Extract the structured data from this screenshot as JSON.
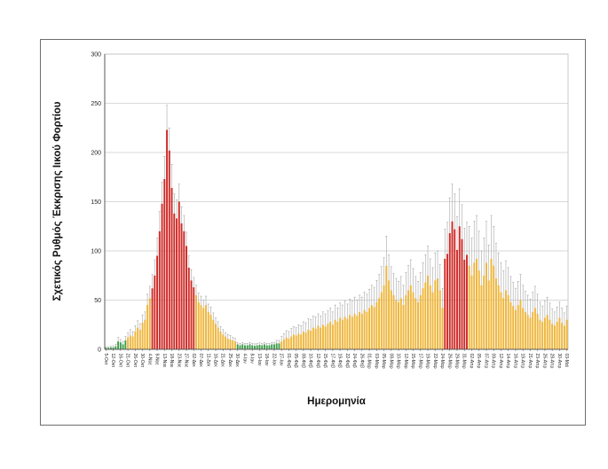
{
  "chart_data": {
    "type": "bar",
    "title": "",
    "xlabel": "Ημερομηνία",
    "ylabel": "Σχετικός Ρυθμός Έκκρισης Ιικού Φορτίου",
    "ylim": [
      0,
      300
    ],
    "yticks": [
      0,
      50,
      100,
      150,
      200,
      250,
      300
    ],
    "grid": true,
    "legend": false,
    "label_every_n_bars": 3,
    "x_tick_labels": [
      "5-Οκτ",
      "12-Οκτ",
      "16-Οκτ",
      "21-Οκτ",
      "26-Οκτ",
      "30-Οκτ",
      "4-Νοε",
      "9-Νοε",
      "13-Νοε",
      "18-Νοε",
      "23-Νοε",
      "27-Νοε",
      "02-Δεκ",
      "07-Δεκ",
      "11-Δεκ",
      "16-Δεκ",
      "21-Δεκ",
      "25-Δεκ",
      "30-Δεκ",
      "4-Ιαν",
      "8-Ιαν",
      "13-Ιαν",
      "18-Ιαν",
      "22-Ιαν",
      "27-Ιαν",
      "01-Φεβ",
      "05-Φεβ",
      "08-Φεβ",
      "10-Φεβ",
      "12-Φεβ",
      "15-Φεβ",
      "17-Φεβ",
      "19-Φεβ",
      "22-Φεβ",
      "24-Φεβ",
      "26-Φεβ",
      "01-Μαρ",
      "03-Μαρ",
      "05-Μαρ",
      "08-Μαρ",
      "10-Μαρ",
      "12-Μαρ",
      "15-Μαρ",
      "17-Μαρ",
      "19-Μαρ",
      "22-Μαρ",
      "24-Μαρ",
      "26-Μαρ",
      "29-Μαρ",
      "31-Μαρ",
      "02-Απρ",
      "05-Απρ",
      "07-Απρ",
      "09-Απρ",
      "12-Απρ",
      "14-Απρ",
      "16-Απρ",
      "19-Απρ",
      "21-Απρ",
      "23-Απρ",
      "26-Απρ",
      "28-Απρ",
      "30-Απρ",
      "03-Μαϊ"
    ],
    "series": [
      {
        "name": "Σχετικός Ρυθμός Έκκρισης Ιικού Φορτίου",
        "values": [
          1.5,
          1.5,
          2,
          2,
          3,
          8,
          7,
          5,
          9,
          12,
          14,
          13,
          18,
          22,
          20,
          27,
          30,
          45,
          52,
          62,
          75,
          95,
          120,
          148,
          173,
          223,
          202,
          164,
          138,
          133,
          150,
          128,
          120,
          105,
          83,
          70,
          63,
          55,
          48,
          45,
          42,
          45,
          38,
          35,
          30,
          26,
          22,
          18,
          15,
          13,
          11,
          10,
          9,
          8,
          5,
          4,
          5,
          4,
          4,
          5,
          4,
          3.5,
          4,
          4.5,
          4,
          5,
          4,
          4,
          5,
          5,
          6,
          6,
          8,
          10,
          12,
          11,
          13,
          15,
          14,
          16,
          15,
          18,
          17,
          20,
          19,
          22,
          21,
          24,
          22,
          25,
          23,
          26,
          28,
          25,
          30,
          28,
          32,
          30,
          33,
          31,
          35,
          33,
          36,
          34,
          38,
          36,
          40,
          38,
          42,
          45,
          43,
          48,
          52,
          58,
          65,
          85,
          70,
          60,
          55,
          50,
          48,
          52,
          45,
          55,
          60,
          65,
          58,
          52,
          48,
          55,
          62,
          68,
          75,
          65,
          58,
          70,
          72,
          60,
          42,
          92,
          97,
          118,
          130,
          122,
          101,
          125,
          112,
          91,
          96,
          85,
          75,
          88,
          92,
          80,
          65,
          75,
          88,
          70,
          92,
          85,
          72,
          65,
          58,
          52,
          60,
          55,
          48,
          44,
          40,
          45,
          50,
          42,
          38,
          35,
          32,
          38,
          42,
          36,
          30,
          28,
          32,
          35,
          30,
          26,
          24,
          28,
          32,
          27,
          24,
          30
        ],
        "errors_upper": [
          1,
          1,
          1,
          1.5,
          2,
          4,
          3,
          3,
          4,
          5,
          6,
          5,
          6,
          7,
          6,
          8,
          8,
          11,
          12,
          14,
          16,
          18,
          20,
          22,
          23,
          25,
          23,
          24,
          20,
          19,
          18,
          17,
          16,
          14,
          12,
          11,
          10,
          10,
          9,
          9,
          8,
          9,
          8,
          8,
          7,
          6,
          6,
          5,
          5,
          4,
          4,
          4,
          3,
          3,
          2,
          2,
          2,
          2,
          2,
          2,
          2,
          2,
          2,
          2,
          2,
          2,
          2,
          2,
          2,
          2,
          3,
          3,
          5,
          6,
          7,
          7,
          8,
          8,
          8,
          9,
          9,
          10,
          10,
          11,
          11,
          12,
          12,
          12,
          12,
          13,
          13,
          13,
          14,
          13,
          15,
          14,
          15,
          15,
          16,
          15,
          16,
          16,
          17,
          16,
          17,
          17,
          18,
          18,
          19,
          20,
          20,
          22,
          24,
          26,
          28,
          30,
          26,
          24,
          22,
          22,
          21,
          22,
          20,
          23,
          25,
          26,
          24,
          22,
          21,
          23,
          26,
          28,
          30,
          27,
          25,
          28,
          28,
          26,
          20,
          30,
          32,
          36,
          38,
          36,
          34,
          38,
          35,
          32,
          33,
          40,
          38,
          42,
          44,
          40,
          35,
          38,
          42,
          36,
          44,
          40,
          36,
          33,
          30,
          28,
          30,
          28,
          26,
          24,
          22,
          24,
          26,
          23,
          21,
          20,
          19,
          20,
          22,
          20,
          18,
          16,
          17,
          18,
          17,
          15,
          14,
          15,
          16,
          15,
          13,
          14
        ],
        "colors": "gggggggggyyyyyyyyyyrrrrrrrrrrrrrrrrrryyyyyyyyyyyyyyyyyggggggggggggggggggyyyyyyyyyyyyyyyyyyyyyyyyyyyyyyyyyyyyyyyyyyyyyyyyyyyyyyyyyyyyyyyyyyyrrrrrrrrrryyyyyyyyyyyyyyyyyyyyyyyyyyyyyyyyyyyyyyyyy"
      }
    ],
    "color_map": {
      "g": "#3f9e4d",
      "y": "#eeb63c",
      "r": "#cf2b27"
    },
    "error_bar_color": "#a6a6a6",
    "gridline_color": "#d9d9d9",
    "axis_color": "#595959",
    "plot_border_color": "#bfbfbf",
    "text_color": "#262626"
  }
}
